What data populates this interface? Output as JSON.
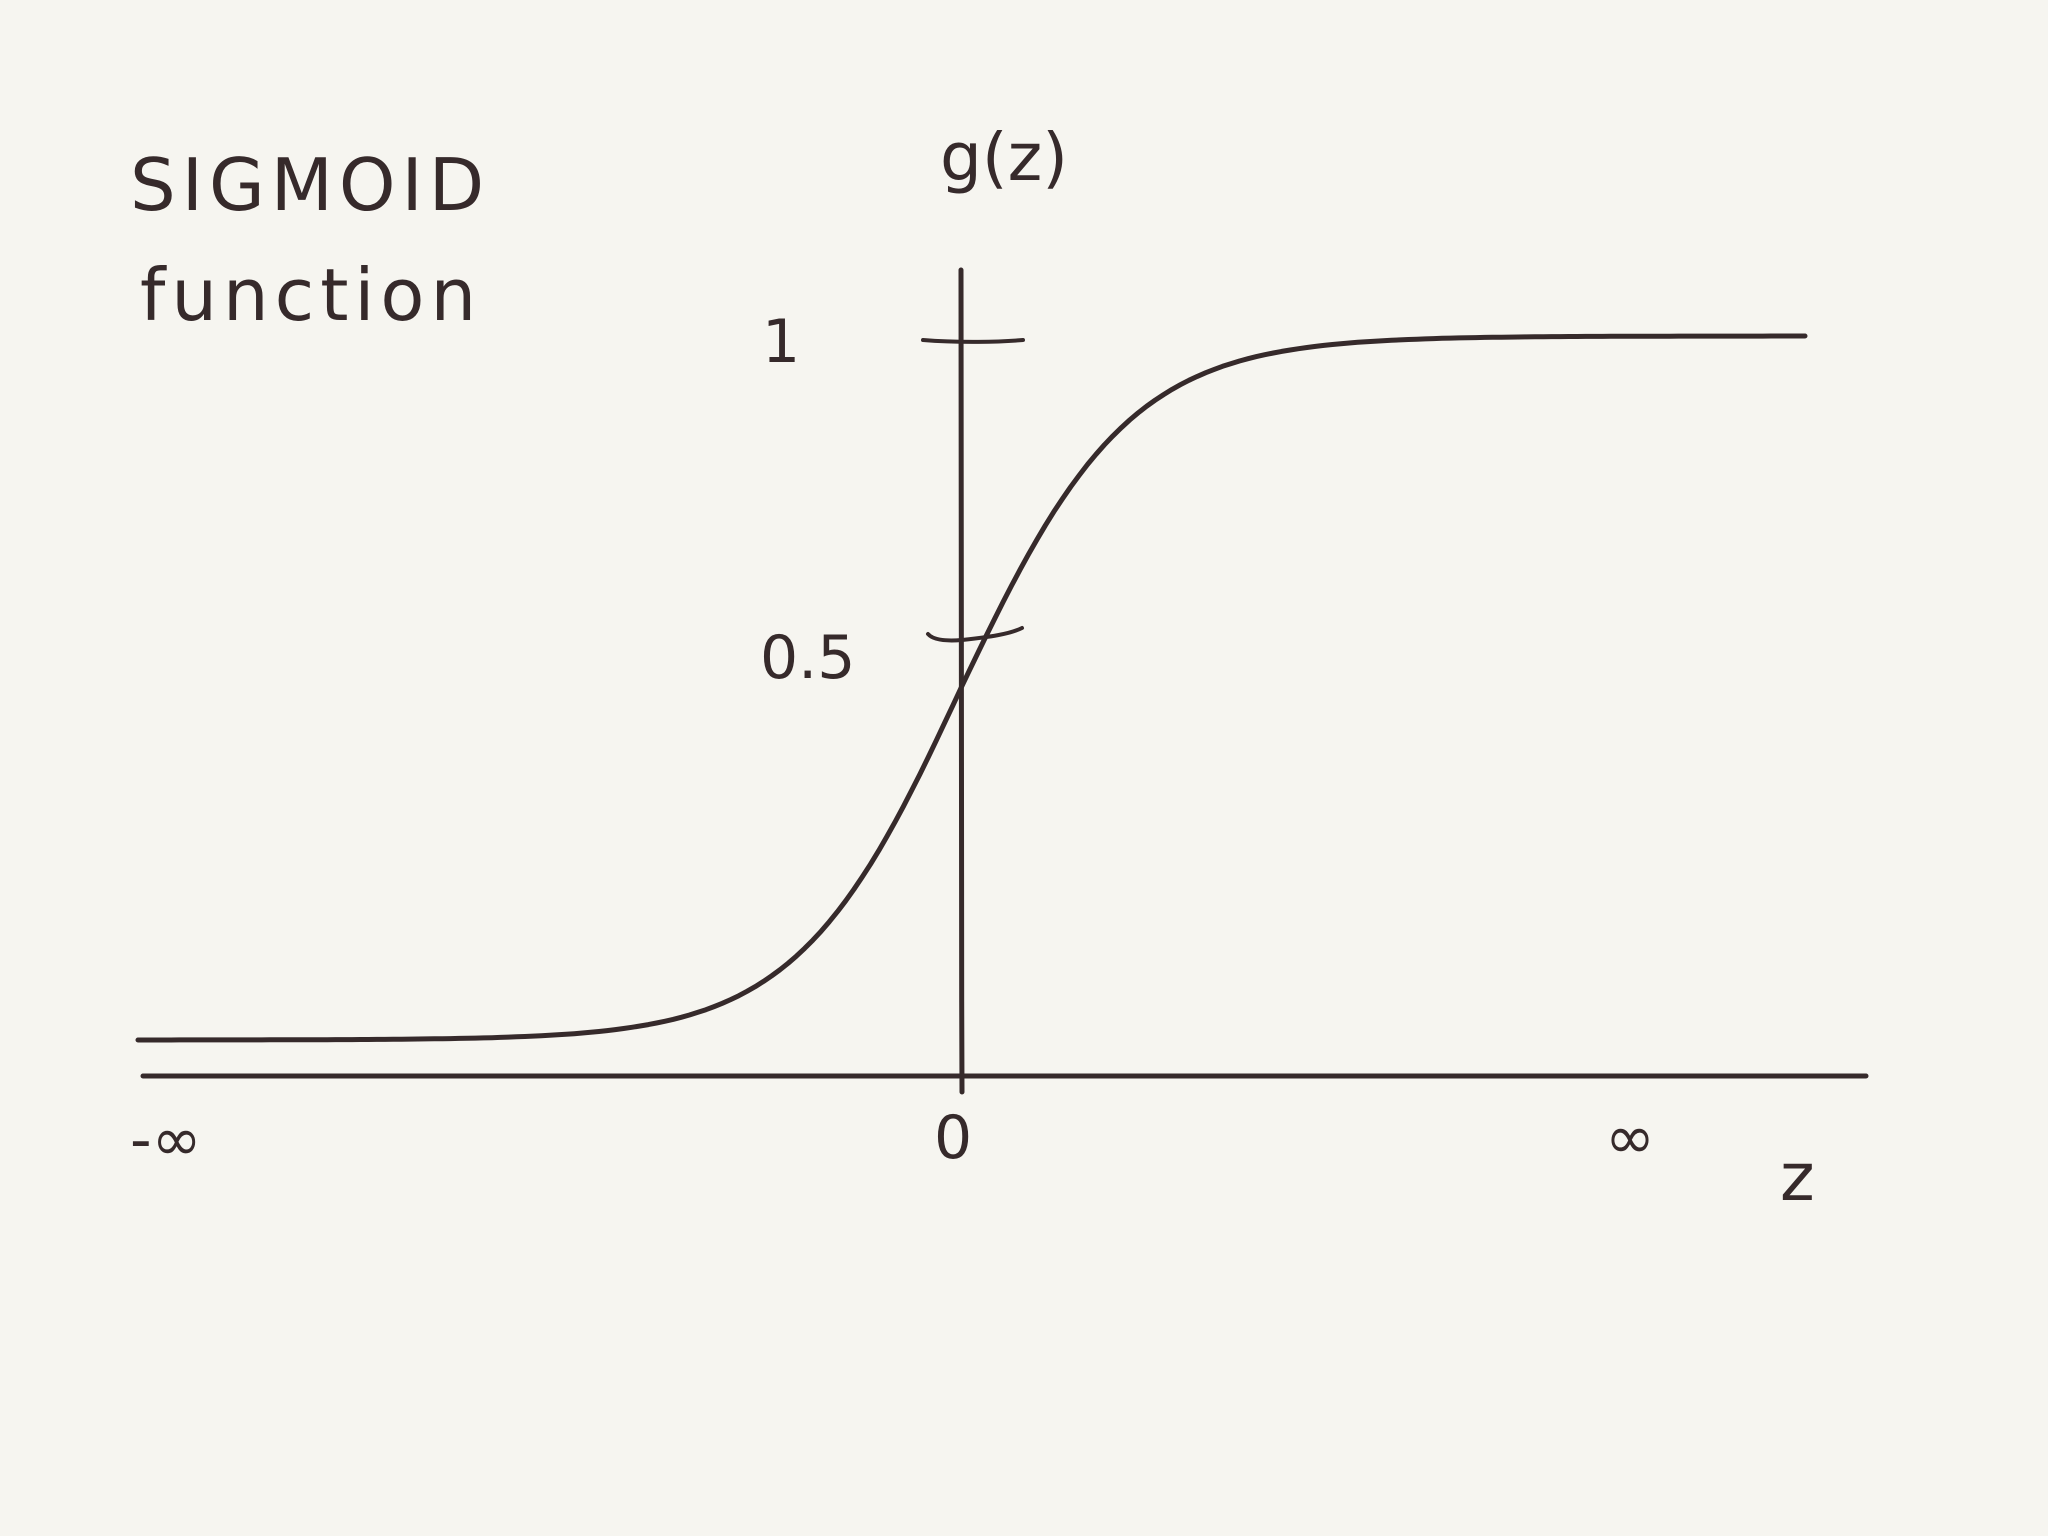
{
  "title_lines": [
    "SIGMOID",
    "function"
  ],
  "axis": {
    "x_label": "z",
    "y_label": "g(z)"
  },
  "tick_labels": {
    "x_left": "-∞",
    "x_zero": "0",
    "x_right": "∞",
    "y_one": "1",
    "y_half": "0.5"
  },
  "colors": {
    "background": "#f6f5f0",
    "ink": "#362a2b"
  },
  "chart_data": {
    "type": "line",
    "function": "sigmoid",
    "series": [
      {
        "x": [
          -10,
          -8,
          -6,
          -5,
          -4,
          -3,
          -2,
          -1,
          0,
          1,
          2,
          3,
          4,
          5,
          6,
          8,
          10
        ],
        "y": [
          0.0,
          0.0003,
          0.0025,
          0.0067,
          0.018,
          0.047,
          0.119,
          0.269,
          0.5,
          0.731,
          0.881,
          0.953,
          0.982,
          0.993,
          0.9975,
          0.9997,
          1.0
        ]
      }
    ],
    "ylim": [
      0,
      1
    ],
    "xlim": [
      -10,
      10
    ],
    "grid": false,
    "legend": "none"
  }
}
